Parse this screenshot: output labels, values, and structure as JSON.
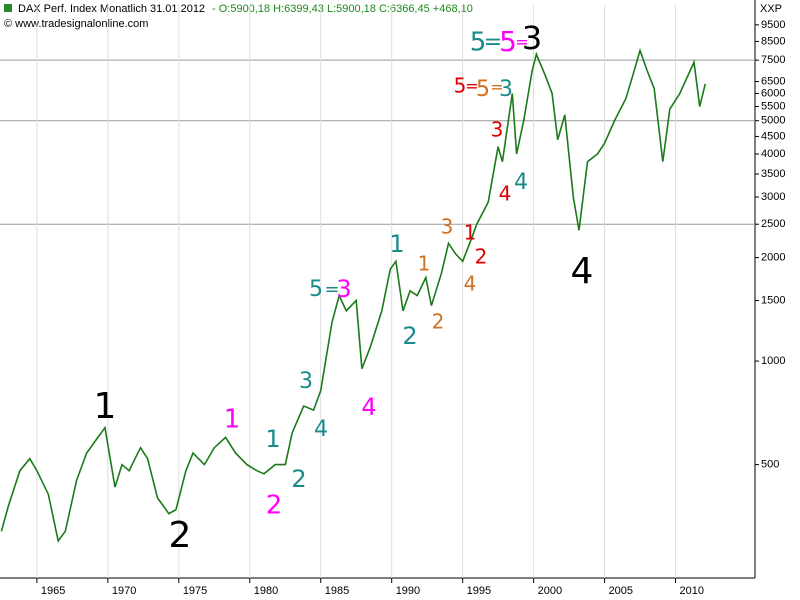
{
  "chart_data": {
    "type": "line",
    "title": "DAX Perf. Index Monatlich",
    "date": "31.01.2012",
    "subtitle": "- O:5900,18 H:6399,43 L:5900,18 C:6366,45 +468,10",
    "source": "© www.tradesignalonline.com",
    "symbol": "XXP",
    "log_scale": true,
    "grid": true,
    "series": [
      {
        "name": "DAX",
        "color": "#1a7a1a",
        "x": [
          1962.5,
          1963,
          1963.8,
          1964.5,
          1965,
          1965.8,
          1966.5,
          1967,
          1967.8,
          1968.5,
          1969.3,
          1969.8,
          1970.5,
          1971,
          1971.5,
          1972.3,
          1972.8,
          1973.5,
          1974.3,
          1974.8,
          1975.5,
          1976,
          1976.8,
          1977.5,
          1978.3,
          1979,
          1979.8,
          1980.5,
          1981,
          1981.8,
          1982.5,
          1983,
          1983.8,
          1984.5,
          1985,
          1985.8,
          1986.3,
          1986.8,
          1987.5,
          1987.9,
          1988.5,
          1989.3,
          1989.9,
          1990.3,
          1990.8,
          1991.3,
          1991.8,
          1992.4,
          1992.8,
          1993.5,
          1994,
          1994.5,
          1995,
          1995.5,
          1996,
          1996.8,
          1997.5,
          1997.8,
          1998.5,
          1998.8,
          1999.3,
          1999.9,
          2000.2,
          2000.8,
          2001.3,
          2001.7,
          2002.2,
          2002.8,
          2003.2,
          2003.8,
          2004.5,
          2005,
          2005.7,
          2006.5,
          2007,
          2007.5,
          2008,
          2008.5,
          2009.1,
          2009.6,
          2010.3,
          2011.3,
          2011.7,
          2012.1
        ],
        "values": [
          320,
          380,
          480,
          520,
          480,
          410,
          300,
          320,
          450,
          540,
          600,
          640,
          430,
          500,
          480,
          560,
          520,
          400,
          360,
          370,
          480,
          540,
          500,
          560,
          600,
          540,
          500,
          480,
          470,
          500,
          500,
          620,
          740,
          720,
          820,
          1300,
          1550,
          1400,
          1500,
          950,
          1100,
          1400,
          1850,
          1950,
          1400,
          1600,
          1550,
          1750,
          1450,
          1800,
          2200,
          2050,
          1950,
          2200,
          2500,
          2900,
          4200,
          3800,
          6000,
          4000,
          5000,
          7000,
          7800,
          6800,
          6000,
          4400,
          5200,
          3000,
          2400,
          3800,
          4000,
          4300,
          5000,
          5800,
          6800,
          8000,
          7000,
          6200,
          3800,
          5400,
          6000,
          7400,
          5500,
          6400
        ]
      }
    ],
    "xlim": [
      1962.4,
      2015.6
    ],
    "xticks": [
      1965,
      1970,
      1975,
      1980,
      1985,
      1990,
      1995,
      2000,
      2005,
      2010
    ],
    "ylim": [
      234,
      10850
    ],
    "yticks": [
      500,
      1000,
      1500,
      2000,
      2500,
      3000,
      3500,
      4000,
      4500,
      5000,
      5500,
      6000,
      6500,
      7500,
      8500,
      9500
    ],
    "grid_lines": [
      2500,
      5000,
      7500
    ],
    "annotations": [
      {
        "text": "1",
        "color": "#000000"
      },
      {
        "text": "2",
        "color": "#000000"
      },
      {
        "text": "3",
        "color": "#000000"
      },
      {
        "text": "4",
        "color": "#000000"
      },
      {
        "text": "1",
        "color": "#ff00ff"
      },
      {
        "text": "2",
        "color": "#ff00ff"
      },
      {
        "text": "3",
        "color": "#ff00ff"
      },
      {
        "text": "4",
        "color": "#ff00ff"
      },
      {
        "text": "5",
        "color": "#ff00ff"
      },
      {
        "text": "1",
        "color": "#1a8a8a"
      },
      {
        "text": "2",
        "color": "#1a8a8a"
      },
      {
        "text": "3",
        "color": "#1a8a8a"
      },
      {
        "text": "4",
        "color": "#1a8a8a"
      },
      {
        "text": "5",
        "color": "#1a8a8a"
      },
      {
        "text": "1",
        "color": "#1a8a8a"
      },
      {
        "text": "2",
        "color": "#1a8a8a"
      },
      {
        "text": "3",
        "color": "#1a8a8a"
      },
      {
        "text": "4",
        "color": "#1a8a8a"
      },
      {
        "text": "5",
        "color": "#1a8a8a"
      },
      {
        "text": "=",
        "color": "#1a8a8a"
      },
      {
        "text": "=",
        "color": "#1a8a8a"
      },
      {
        "text": "=",
        "color": "#ff00ff"
      },
      {
        "text": "1",
        "color": "#d07020"
      },
      {
        "text": "2",
        "color": "#d07020"
      },
      {
        "text": "3",
        "color": "#d07020"
      },
      {
        "text": "4",
        "color": "#d07020"
      },
      {
        "text": "5",
        "color": "#d07020"
      },
      {
        "text": "=",
        "color": "#d07020"
      },
      {
        "text": "1",
        "color": "#e00000"
      },
      {
        "text": "2",
        "color": "#e00000"
      },
      {
        "text": "3",
        "color": "#e00000"
      },
      {
        "text": "4",
        "color": "#e00000"
      },
      {
        "text": "5",
        "color": "#e00000"
      },
      {
        "text": "=",
        "color": "#e00000"
      }
    ]
  }
}
